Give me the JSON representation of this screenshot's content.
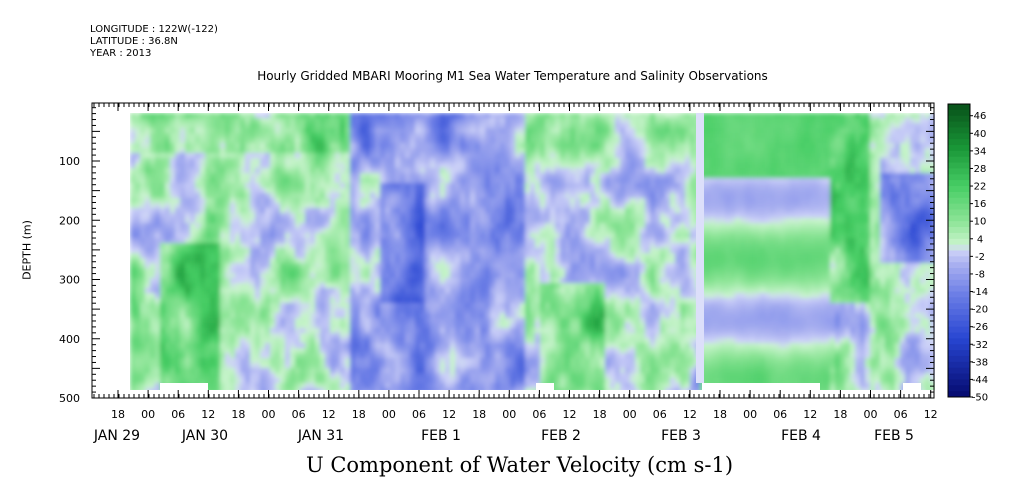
{
  "header": {
    "longitude": "LONGITUDE : 122W(-122)",
    "latitude": "LATITUDE : 36.8N",
    "year": "YEAR : 2013"
  },
  "chart_data": {
    "type": "heatmap",
    "title": "Hourly Gridded MBARI Mooring M1 Sea Water Temperature and Salinity Observations",
    "xlabel": "U Component of Water Velocity (cm s-1)",
    "ylabel": "DEPTH (m)",
    "ylim": [
      500,
      0
    ],
    "yticks": [
      100,
      200,
      300,
      400,
      500
    ],
    "x_hour_labels": [
      "18",
      "00",
      "06",
      "12",
      "18",
      "00",
      "06",
      "12",
      "18",
      "00",
      "06",
      "12",
      "18",
      "00",
      "06",
      "12",
      "18",
      "00",
      "06",
      "12",
      "18",
      "00",
      "06",
      "12",
      "18",
      "00",
      "06",
      "12"
    ],
    "x_day_labels": [
      "JAN 29",
      "JAN 30",
      "JAN 31",
      "FEB  1",
      "FEB  2",
      "FEB  3",
      "FEB  4",
      "FEB  5"
    ],
    "colorbar_ticks": [
      "46",
      "40",
      "34",
      "28",
      "22",
      "16",
      "10",
      "4",
      "-2",
      "-8",
      "-14",
      "-20",
      "-26",
      "-32",
      "-38",
      "-44",
      "-50"
    ],
    "colorbar_range": [
      -50,
      50
    ],
    "colors": {
      "dark_green": "#0a5a14",
      "light_green": "#a8ecaa",
      "light_blue": "#c8cdf8",
      "mid_blue": "#6c7ee6",
      "dark_navy": "#050a6e"
    }
  }
}
